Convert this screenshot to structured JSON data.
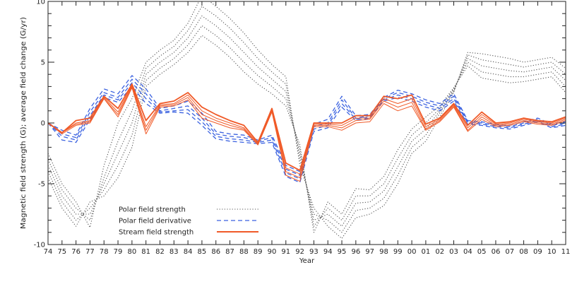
{
  "chart_data": {
    "type": "line",
    "title": "",
    "xlabel": "Year",
    "ylabel": "Magnetic field strength (G); average field change (G/yr)",
    "xlim": [
      1974,
      2011
    ],
    "ylim": [
      -10,
      10
    ],
    "grid": false,
    "legend_position": "bottom-left",
    "x_tick_labels": [
      "74",
      "75",
      "76",
      "77",
      "78",
      "79",
      "80",
      "81",
      "82",
      "83",
      "84",
      "85",
      "86",
      "87",
      "88",
      "89",
      "90",
      "91",
      "92",
      "93",
      "94",
      "95",
      "96",
      "97",
      "98",
      "99",
      "00",
      "01",
      "02",
      "03",
      "04",
      "05",
      "06",
      "07",
      "08",
      "09",
      "10",
      "11"
    ],
    "y_ticks": [
      -10,
      -5,
      0,
      5,
      10
    ],
    "x": [
      1974,
      1975,
      1976,
      1977,
      1978,
      1979,
      1980,
      1981,
      1982,
      1983,
      1984,
      1985,
      1986,
      1987,
      1988,
      1989,
      1990,
      1991,
      1992,
      1993,
      1994,
      1995,
      1996,
      1997,
      1998,
      1999,
      2000,
      2001,
      2002,
      2003,
      2004,
      2005,
      2006,
      2007,
      2008,
      2009,
      2010,
      2011
    ],
    "series": [
      {
        "name": "Polar field strength",
        "style": "dotted",
        "color": "#555555",
        "lines": [
          [
            -2.5,
            -5.0,
            -6.5,
            -8.6,
            -3.5,
            0.0,
            2.0,
            5.0,
            6.0,
            6.8,
            8.2,
            10.5,
            9.6,
            8.6,
            7.4,
            6.0,
            4.8,
            3.8,
            -3.5,
            -7.0,
            -8.5,
            -9.5,
            -7.8,
            -7.5,
            -6.8,
            -5.0,
            -2.5,
            -1.5,
            0.5,
            2.5,
            5.8,
            5.7,
            5.5,
            5.3,
            5.0,
            5.2,
            5.4,
            4.5
          ],
          [
            -3.0,
            -5.5,
            -7.0,
            -8.0,
            -4.5,
            -1.5,
            1.0,
            4.5,
            5.5,
            6.3,
            7.6,
            9.6,
            8.8,
            7.8,
            6.6,
            5.3,
            4.2,
            3.2,
            -3.0,
            -7.5,
            -8.0,
            -9.0,
            -7.2,
            -7.0,
            -6.2,
            -4.3,
            -2.0,
            -1.0,
            0.8,
            2.6,
            5.6,
            5.2,
            5.0,
            4.8,
            4.6,
            4.8,
            5.0,
            4.0
          ],
          [
            -3.5,
            -6.0,
            -7.5,
            -7.5,
            -5.0,
            -2.5,
            0.0,
            4.0,
            5.0,
            5.8,
            7.0,
            8.8,
            8.0,
            7.0,
            5.8,
            4.6,
            3.6,
            2.6,
            -2.6,
            -8.0,
            -7.5,
            -8.5,
            -6.6,
            -6.5,
            -5.6,
            -3.6,
            -1.5,
            -0.5,
            1.0,
            2.7,
            5.3,
            4.7,
            4.5,
            4.3,
            4.2,
            4.4,
            4.6,
            3.5
          ],
          [
            -4.0,
            -6.5,
            -8.0,
            -7.0,
            -5.5,
            -3.5,
            -1.0,
            3.5,
            4.5,
            5.3,
            6.4,
            8.0,
            7.2,
            6.2,
            5.0,
            3.9,
            3.0,
            2.0,
            -2.2,
            -8.5,
            -7.0,
            -8.0,
            -6.0,
            -6.0,
            -5.0,
            -2.9,
            -1.0,
            0.0,
            1.2,
            2.8,
            5.0,
            4.2,
            4.0,
            3.8,
            3.8,
            4.0,
            4.2,
            3.0
          ],
          [
            -4.5,
            -7.0,
            -8.5,
            -6.5,
            -6.0,
            -4.5,
            -2.0,
            3.0,
            4.0,
            4.8,
            5.8,
            7.2,
            6.4,
            5.4,
            4.2,
            3.2,
            2.4,
            1.4,
            -1.8,
            -9.0,
            -6.5,
            -7.5,
            -5.4,
            -5.5,
            -4.4,
            -2.2,
            -0.5,
            0.5,
            1.4,
            2.9,
            4.7,
            3.7,
            3.5,
            3.3,
            3.4,
            3.6,
            3.8,
            2.5
          ]
        ]
      },
      {
        "name": "Polar field derivative",
        "style": "dashed",
        "color": "#3b62e0",
        "lines": [
          [
            0.0,
            -0.6,
            -1.0,
            1.2,
            2.8,
            2.4,
            3.9,
            2.8,
            1.2,
            1.4,
            1.8,
            0.8,
            -0.7,
            -0.9,
            -1.0,
            -1.4,
            -1.0,
            -3.5,
            -4.0,
            -0.1,
            0.3,
            2.2,
            0.6,
            0.7,
            2.1,
            2.7,
            2.4,
            1.9,
            1.6,
            2.4,
            0.2,
            0.1,
            -0.1,
            -0.2,
            0.1,
            0.4,
            -0.1,
            0.1
          ],
          [
            0.0,
            -0.9,
            -1.2,
            0.9,
            2.5,
            2.1,
            3.6,
            2.4,
            1.0,
            1.2,
            1.4,
            0.4,
            -0.9,
            -1.1,
            -1.2,
            -1.5,
            -1.2,
            -3.8,
            -4.3,
            -0.3,
            0.0,
            1.9,
            0.4,
            0.6,
            2.0,
            2.5,
            2.2,
            1.7,
            1.4,
            2.2,
            0.1,
            0.0,
            -0.2,
            -0.3,
            0.0,
            0.3,
            -0.2,
            0.0
          ],
          [
            0.0,
            -1.1,
            -1.4,
            0.6,
            2.3,
            1.9,
            3.3,
            2.0,
            0.9,
            1.0,
            1.1,
            0.1,
            -1.1,
            -1.3,
            -1.4,
            -1.6,
            -1.4,
            -4.1,
            -4.6,
            -0.5,
            -0.2,
            1.6,
            0.3,
            0.5,
            1.9,
            2.3,
            2.0,
            1.5,
            1.2,
            2.0,
            0.0,
            -0.1,
            -0.3,
            -0.4,
            -0.1,
            0.2,
            -0.3,
            -0.1
          ],
          [
            0.0,
            -1.4,
            -1.6,
            0.3,
            2.1,
            1.7,
            3.0,
            1.6,
            0.8,
            0.9,
            0.8,
            -0.2,
            -1.3,
            -1.5,
            -1.6,
            -1.7,
            -1.6,
            -4.4,
            -4.9,
            -0.7,
            -0.4,
            1.3,
            0.2,
            0.4,
            1.8,
            2.1,
            1.8,
            1.3,
            1.0,
            1.8,
            -0.1,
            -0.2,
            -0.4,
            -0.5,
            -0.2,
            0.1,
            -0.4,
            -0.2
          ]
        ]
      },
      {
        "name": "Stream field strength",
        "style": "solid",
        "color": "#f05a28",
        "lines": [
          [
            0.0,
            -0.8,
            0.2,
            0.4,
            2.2,
            1.2,
            3.2,
            0.2,
            1.6,
            1.8,
            2.5,
            1.3,
            0.7,
            0.2,
            -0.2,
            -1.6,
            1.2,
            -3.3,
            -3.9,
            0.0,
            0.0,
            0.0,
            0.6,
            0.6,
            2.2,
            2.0,
            2.3,
            -0.1,
            0.4,
            1.6,
            -0.2,
            0.9,
            0.0,
            0.1,
            0.4,
            0.2,
            0.1,
            0.5
          ],
          [
            0.0,
            -0.8,
            0.0,
            0.2,
            2.1,
            0.9,
            3.1,
            -0.3,
            1.5,
            1.6,
            2.3,
            1.0,
            0.4,
            0.0,
            -0.4,
            -1.7,
            1.1,
            -3.7,
            -4.2,
            -0.1,
            -0.1,
            -0.2,
            0.4,
            0.4,
            2.0,
            1.6,
            2.0,
            -0.3,
            0.3,
            1.5,
            -0.4,
            0.7,
            -0.1,
            0.0,
            0.3,
            0.1,
            0.0,
            0.4
          ],
          [
            0.0,
            -0.8,
            -0.1,
            0.1,
            2.0,
            0.7,
            3.0,
            -0.6,
            1.4,
            1.5,
            2.1,
            0.7,
            0.2,
            -0.2,
            -0.5,
            -1.8,
            1.0,
            -4.0,
            -4.5,
            -0.2,
            -0.2,
            -0.4,
            0.2,
            0.3,
            1.8,
            1.3,
            1.7,
            -0.5,
            0.2,
            1.4,
            -0.6,
            0.5,
            -0.2,
            -0.1,
            0.2,
            0.0,
            -0.1,
            0.3
          ],
          [
            0.0,
            -0.9,
            -0.2,
            0.0,
            2.0,
            0.5,
            2.9,
            -0.9,
            1.3,
            1.4,
            1.9,
            0.4,
            0.0,
            -0.4,
            -0.6,
            -1.8,
            0.9,
            -4.3,
            -4.8,
            -0.3,
            -0.3,
            -0.6,
            0.0,
            0.1,
            1.6,
            1.0,
            1.4,
            -0.6,
            0.1,
            1.3,
            -0.7,
            0.3,
            -0.3,
            -0.2,
            0.1,
            -0.1,
            -0.2,
            0.2
          ]
        ]
      }
    ]
  }
}
